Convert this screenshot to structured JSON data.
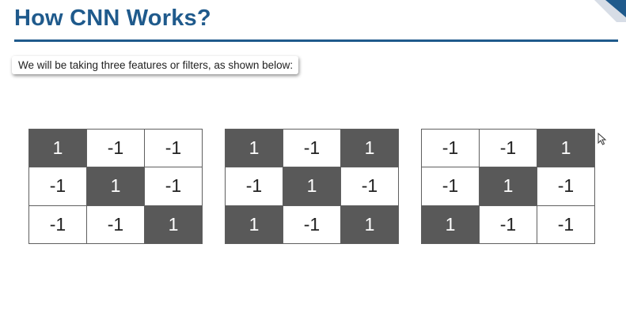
{
  "slide": {
    "title": "How CNN Works?",
    "subtitle": "We will be taking three features or filters, as shown below:"
  },
  "colors": {
    "title": "#1f5a8c",
    "rule": "#1f5a8c",
    "filled_cell": "#595959",
    "empty_cell": "#ffffff",
    "deco_light": "#d7dde6",
    "deco_dark": "#1f5a8c"
  },
  "filters": [
    {
      "cells": [
        [
          "1",
          "-1",
          "-1"
        ],
        [
          "-1",
          "1",
          "-1"
        ],
        [
          "-1",
          "-1",
          "1"
        ]
      ],
      "highlight": [
        [
          true,
          false,
          false
        ],
        [
          false,
          true,
          false
        ],
        [
          false,
          false,
          true
        ]
      ]
    },
    {
      "cells": [
        [
          "1",
          "-1",
          "1"
        ],
        [
          "-1",
          "1",
          "-1"
        ],
        [
          "1",
          "-1",
          "1"
        ]
      ],
      "highlight": [
        [
          true,
          false,
          true
        ],
        [
          false,
          true,
          false
        ],
        [
          true,
          false,
          true
        ]
      ]
    },
    {
      "cells": [
        [
          "-1",
          "-1",
          "1"
        ],
        [
          "-1",
          "1",
          "-1"
        ],
        [
          "1",
          "-1",
          "-1"
        ]
      ],
      "highlight": [
        [
          false,
          false,
          true
        ],
        [
          false,
          true,
          false
        ],
        [
          true,
          false,
          false
        ]
      ]
    }
  ],
  "icons": {
    "corner": "corner-stripes-icon",
    "cursor": "mouse-cursor-icon"
  }
}
